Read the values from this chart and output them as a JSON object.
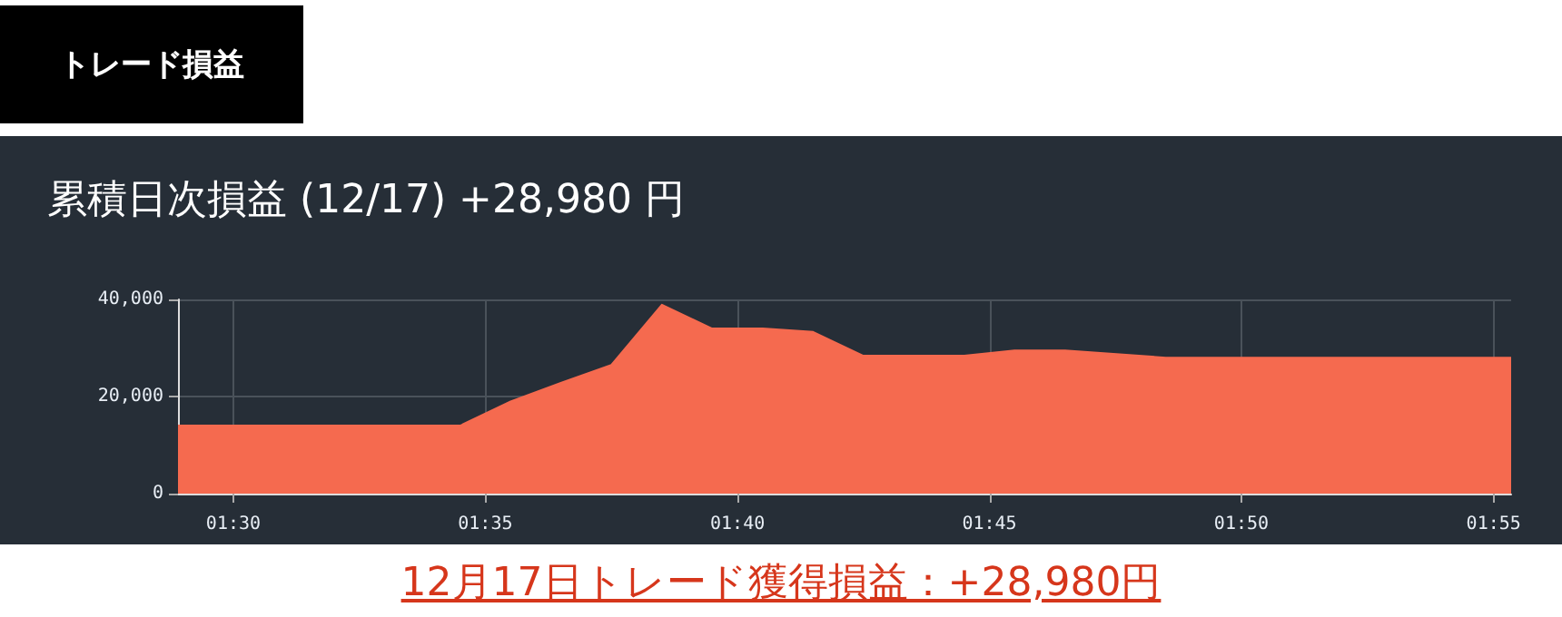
{
  "chart_data": {
    "type": "area",
    "title": "累積日次損益 (12/17) +28,980 円",
    "annotations": [
      "トレード損益",
      "12月17日トレード獲得損益：+28,980円"
    ],
    "x": [
      1.4817,
      1.575,
      1.5917,
      1.6083,
      1.625,
      1.6417,
      1.6583,
      1.675,
      1.6917,
      1.7083,
      1.7417,
      1.7583,
      1.775,
      1.8083,
      1.9225
    ],
    "values": [
      14000,
      14000,
      19000,
      22800,
      26500,
      38900,
      34000,
      34000,
      33300,
      28400,
      28400,
      29500,
      29500,
      28000,
      28000
    ],
    "color": "#f56a4f",
    "xlim": [
      1.4817,
      1.9225
    ],
    "xticks": [
      {
        "value": 1.5,
        "label": "01:30"
      },
      {
        "value": 1.5833,
        "label": "01:35"
      },
      {
        "value": 1.6667,
        "label": "01:40"
      },
      {
        "value": 1.75,
        "label": "01:45"
      },
      {
        "value": 1.8333,
        "label": "01:50"
      },
      {
        "value": 1.9167,
        "label": "01:55"
      }
    ],
    "ylim": [
      0,
      40000
    ],
    "yticks": [
      {
        "value": 0,
        "label": "0"
      },
      {
        "value": 20000,
        "label": "20,000"
      },
      {
        "value": 40000,
        "label": "40,000"
      }
    ],
    "grid": true,
    "marker": "none"
  }
}
